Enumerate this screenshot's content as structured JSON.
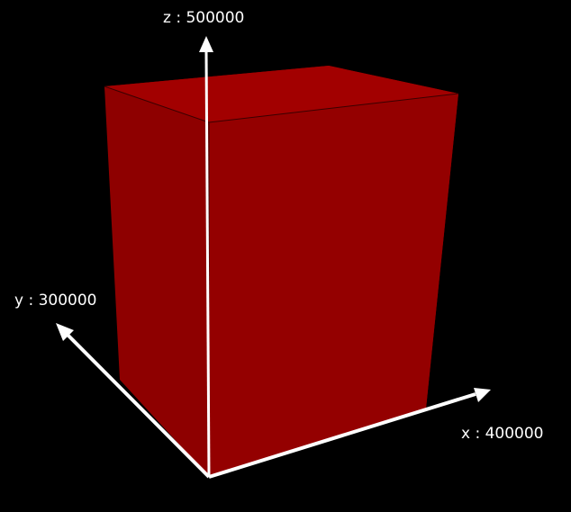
{
  "axes": {
    "x": {
      "label": "x : 400000",
      "value": 400000,
      "color": "#ffffff"
    },
    "y": {
      "label": "y : 300000",
      "value": 300000,
      "color": "#ffffff"
    },
    "z": {
      "label": "z : 500000",
      "value": 500000,
      "color": "#ffffff"
    }
  },
  "box": {
    "face_colors": {
      "top": "#a20000",
      "left": "#8e0000",
      "front": "#940000",
      "right": "#8a0000",
      "back": "#900000",
      "bottom": "#6f0000"
    },
    "edge_color": "#3a0000"
  },
  "background_color": "#000000"
}
